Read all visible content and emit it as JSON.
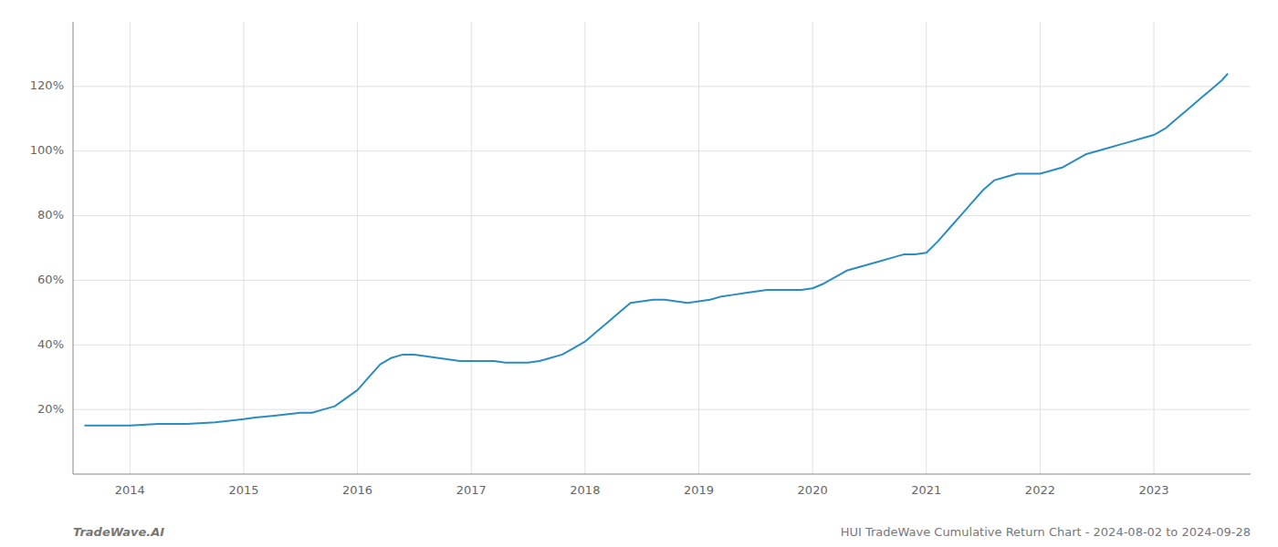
{
  "chart_data": {
    "type": "line",
    "color": "#2b8cbf",
    "grid": true,
    "annotations": [
      "TradeWave.AI",
      "HUI TradeWave Cumulative Return Chart - 2024-08-02 to 2024-09-28"
    ],
    "x": [
      2013.6,
      2013.75,
      2014.0,
      2014.25,
      2014.5,
      2014.75,
      2015.0,
      2015.1,
      2015.25,
      2015.5,
      2015.6,
      2015.7,
      2015.8,
      2016.0,
      2016.1,
      2016.2,
      2016.3,
      2016.4,
      2016.5,
      2016.6,
      2016.7,
      2016.8,
      2016.9,
      2017.0,
      2017.1,
      2017.2,
      2017.3,
      2017.4,
      2017.5,
      2017.6,
      2017.7,
      2017.8,
      2017.9,
      2018.0,
      2018.1,
      2018.2,
      2018.3,
      2018.4,
      2018.5,
      2018.6,
      2018.7,
      2018.8,
      2018.9,
      2019.0,
      2019.1,
      2019.2,
      2019.3,
      2019.4,
      2019.5,
      2019.6,
      2019.7,
      2019.8,
      2019.9,
      2020.0,
      2020.1,
      2020.2,
      2020.3,
      2020.4,
      2020.5,
      2020.6,
      2020.7,
      2020.8,
      2020.9,
      2021.0,
      2021.1,
      2021.2,
      2021.3,
      2021.4,
      2021.5,
      2021.6,
      2021.7,
      2021.8,
      2021.9,
      2022.0,
      2022.1,
      2022.2,
      2022.3,
      2022.4,
      2022.5,
      2022.6,
      2022.7,
      2022.8,
      2022.9,
      2023.0,
      2023.1,
      2023.2,
      2023.3,
      2023.4,
      2023.5,
      2023.6,
      2023.65
    ],
    "values": [
      15,
      15,
      15,
      15.5,
      15.5,
      16,
      17,
      17.5,
      18,
      19,
      19,
      20,
      21,
      26,
      30,
      34,
      36,
      37,
      37,
      36.5,
      36,
      35.5,
      35,
      35,
      35,
      35,
      34.5,
      34.5,
      34.5,
      35,
      36,
      37,
      39,
      41,
      44,
      47,
      50,
      53,
      53.5,
      54,
      54,
      53.5,
      53,
      53.5,
      54,
      55,
      55.5,
      56,
      56.5,
      57,
      57,
      57,
      57,
      57.5,
      59,
      61,
      63,
      64,
      65,
      66,
      67,
      68,
      68,
      68.5,
      72,
      76,
      80,
      84,
      88,
      91,
      92,
      93,
      93,
      93,
      94,
      95,
      97,
      99,
      100,
      101,
      102,
      103,
      104,
      105,
      107,
      110,
      113,
      116,
      119,
      122,
      124
    ],
    "xlim": [
      2013.5,
      2023.85
    ],
    "ylim": [
      0,
      140
    ],
    "xticks": [
      2014,
      2015,
      2016,
      2017,
      2018,
      2019,
      2020,
      2021,
      2022,
      2023
    ],
    "yticks": [
      {
        "value": 20,
        "label": "20%"
      },
      {
        "value": 40,
        "label": "40%"
      },
      {
        "value": 60,
        "label": "60%"
      },
      {
        "value": 80,
        "label": "80%"
      },
      {
        "value": 100,
        "label": "100%"
      },
      {
        "value": 120,
        "label": "120%"
      }
    ]
  }
}
